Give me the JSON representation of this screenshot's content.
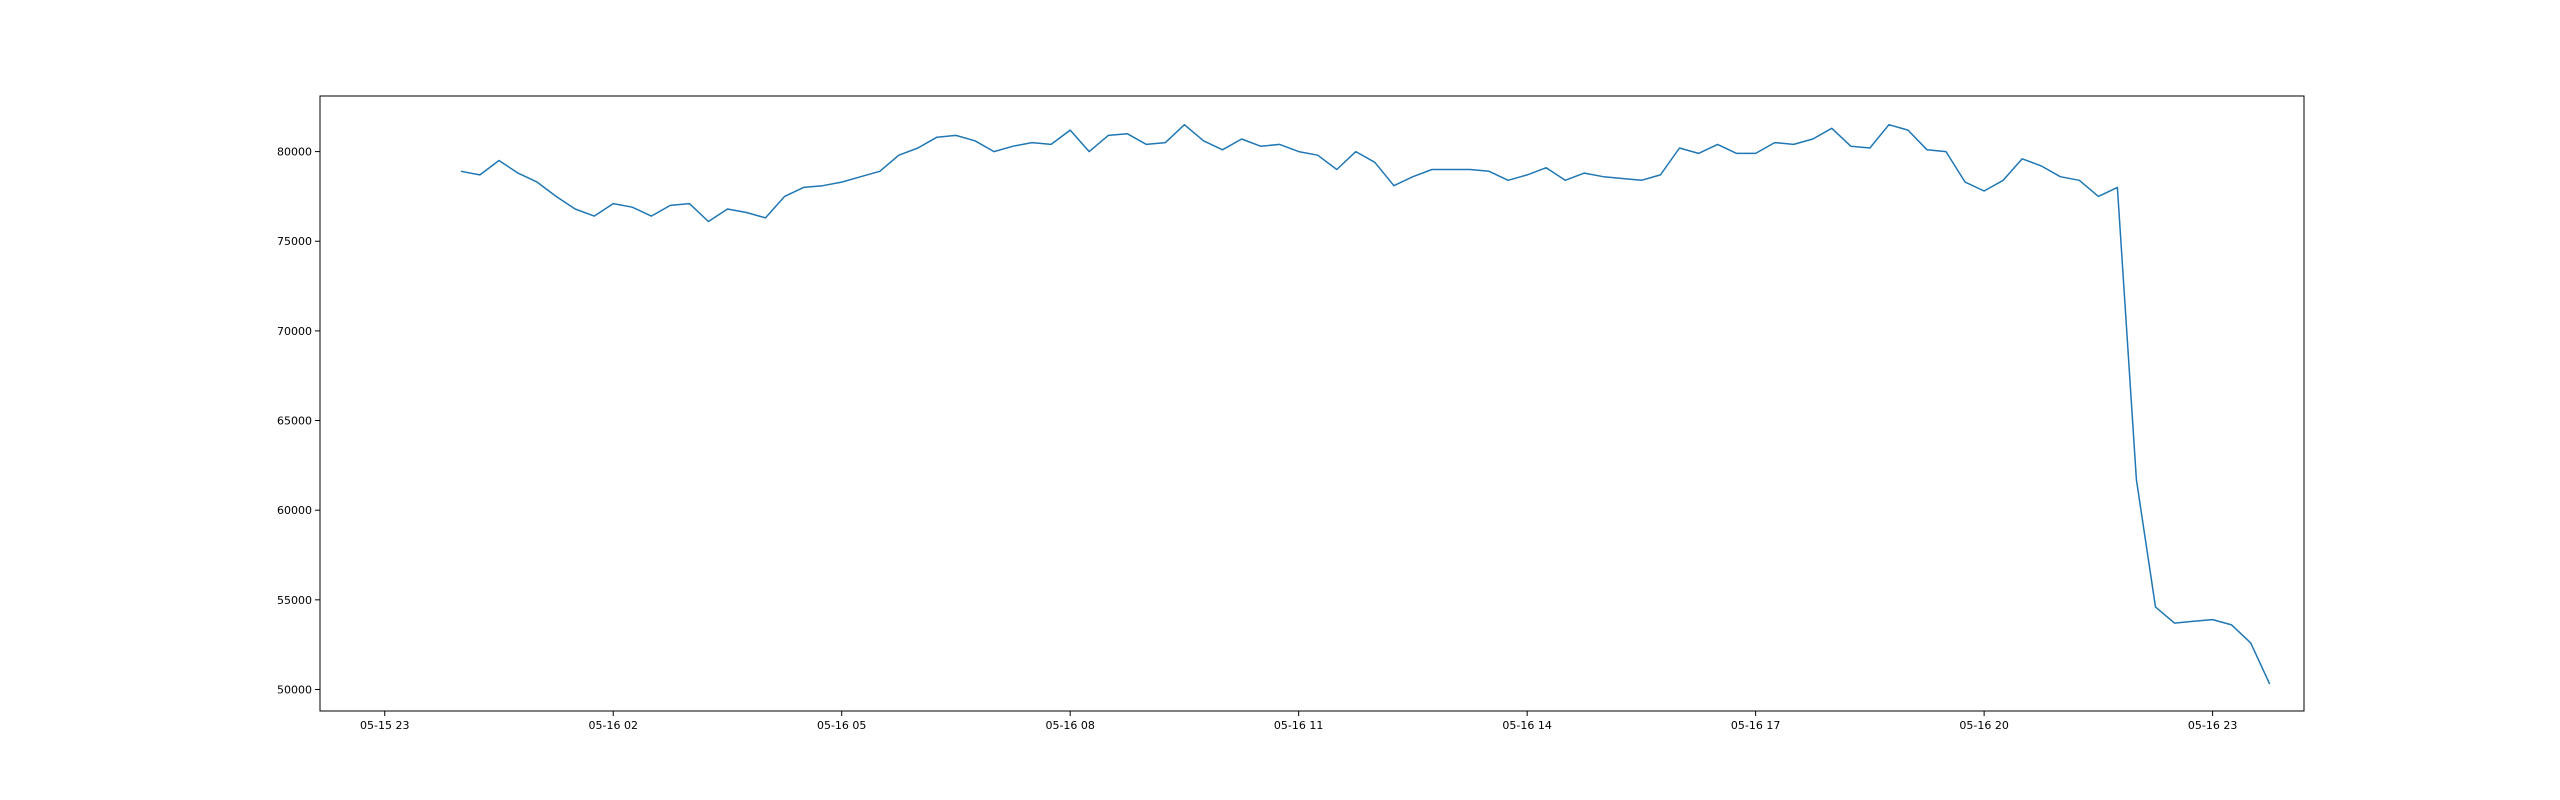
{
  "chart_data": {
    "type": "line",
    "title": "",
    "xlabel": "",
    "ylabel": "",
    "xlim": [
      -0.85,
      25.2
    ],
    "ylim": [
      48800,
      83100
    ],
    "grid": false,
    "line_color": "#1f77b4",
    "x_ticks": [
      {
        "value": 0,
        "label": "05-15 23"
      },
      {
        "value": 3,
        "label": "05-16 02"
      },
      {
        "value": 6,
        "label": "05-16 05"
      },
      {
        "value": 9,
        "label": "05-16 08"
      },
      {
        "value": 12,
        "label": "05-16 11"
      },
      {
        "value": 15,
        "label": "05-16 14"
      },
      {
        "value": 18,
        "label": "05-16 17"
      },
      {
        "value": 21,
        "label": "05-16 20"
      },
      {
        "value": 24,
        "label": "05-16 23"
      }
    ],
    "y_ticks": [
      50000,
      55000,
      60000,
      65000,
      70000,
      75000,
      80000
    ],
    "series": [
      {
        "x": [
          1.0,
          1.25,
          1.5,
          1.75,
          2.0,
          2.25,
          2.5,
          2.75,
          3.0,
          3.25,
          3.5,
          3.75,
          4.0,
          4.25,
          4.5,
          4.75,
          5.0,
          5.25,
          5.5,
          5.75,
          6.0,
          6.25,
          6.5,
          6.75,
          7.0,
          7.25,
          7.5,
          7.75,
          8.0,
          8.25,
          8.5,
          8.75,
          9.0,
          9.25,
          9.5,
          9.75,
          10.0,
          10.25,
          10.5,
          10.75,
          11.0,
          11.25,
          11.5,
          11.75,
          12.0,
          12.25,
          12.5,
          12.75,
          13.0,
          13.25,
          13.5,
          13.75,
          14.0,
          14.25,
          14.5,
          14.75,
          15.0,
          15.25,
          15.5,
          15.75,
          16.0,
          16.25,
          16.5,
          16.75,
          17.0,
          17.25,
          17.5,
          17.75,
          18.0,
          18.25,
          18.5,
          18.75,
          19.0,
          19.25,
          19.5,
          19.75,
          20.0,
          20.25,
          20.5,
          20.75,
          21.0,
          21.25,
          21.5,
          21.75,
          22.0,
          22.25,
          22.5,
          22.75,
          23.0,
          23.25,
          23.5,
          23.75,
          24.0,
          24.25,
          24.5,
          24.75
        ],
        "values": [
          78900,
          78700,
          79500,
          78800,
          78300,
          77500,
          76800,
          76400,
          77100,
          76900,
          76400,
          77000,
          77100,
          76100,
          76800,
          76600,
          76300,
          77500,
          78000,
          78100,
          78300,
          78600,
          78900,
          79800,
          80200,
          80800,
          80900,
          80600,
          80000,
          80300,
          80500,
          80400,
          81200,
          80000,
          80900,
          81000,
          80400,
          80500,
          81500,
          80600,
          80100,
          80700,
          80300,
          80400,
          80000,
          79800,
          79000,
          80000,
          79400,
          78100,
          78600,
          79000,
          79000,
          79000,
          78900,
          78400,
          78700,
          79100,
          78400,
          78800,
          78600,
          78500,
          78400,
          78700,
          80200,
          79900,
          80400,
          79900,
          79900,
          80500,
          80400,
          80700,
          81300,
          80300,
          80200,
          81500,
          81200,
          80100,
          80000,
          78300,
          77800,
          78400,
          79600,
          79200,
          78600,
          78400,
          77500,
          78000,
          61700,
          54600,
          53700,
          53800,
          53900,
          53600,
          52600,
          50300
        ]
      }
    ]
  }
}
